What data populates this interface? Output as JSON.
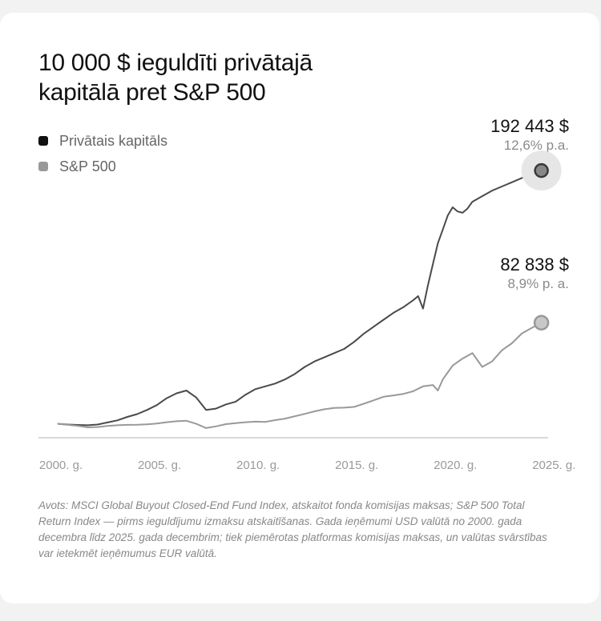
{
  "title": "10 000 $ ieguldīti privātajā kapitālā pret S&P 500",
  "colors": {
    "private": "#4a4a4a",
    "sp500": "#999999",
    "axis": "#cccccc",
    "tick_text": "#9a9a9a"
  },
  "callouts": {
    "private": {
      "value": "192 443 $",
      "rate": "12,6% p.a."
    },
    "sp500": {
      "value": "82 838 $",
      "rate": "8,9% p. a."
    }
  },
  "source_note": "Avots: MSCI Global Buyout Closed-End Fund Index, atskaitot fonda komisijas maksas; S&P 500 Total Return Index — pirms ieguldījumu izmaksu atskaitīšanas. Gada ieņēmumi USD valūtā no 2000. gada decembra līdz 2025. gada decembrim; tiek piemērotas platformas komisijas maksas, un valūtas svārstības var ietekmēt ieņēmumus EUR valūtā.",
  "chart_data": {
    "type": "line",
    "xlim": [
      2000,
      2025.8
    ],
    "ylim": [
      0,
      200000
    ],
    "x_ticks": [
      2000,
      2005,
      2010,
      2015,
      2020,
      2025
    ],
    "x_tick_labels": [
      "2000. g.",
      "2005. g.",
      "2010. g.",
      "2015. g.",
      "2020. g.",
      "2025. g."
    ],
    "legend_position": "top-left",
    "grid": false,
    "series": [
      {
        "name": "Privātais kapitāls",
        "key": "private",
        "x": [
          2001.0,
          2001.5,
          2002.0,
          2002.5,
          2003.0,
          2003.5,
          2004.0,
          2004.5,
          2005.0,
          2005.5,
          2006.0,
          2006.5,
          2007.0,
          2007.5,
          2008.0,
          2008.5,
          2009.0,
          2009.5,
          2010.0,
          2010.5,
          2011.0,
          2011.5,
          2012.0,
          2012.5,
          2013.0,
          2013.5,
          2014.0,
          2014.5,
          2015.0,
          2015.5,
          2016.0,
          2016.5,
          2017.0,
          2017.5,
          2018.0,
          2018.5,
          2019.0,
          2019.25,
          2019.5,
          2019.75,
          2020.0,
          2020.25,
          2020.5,
          2020.75,
          2021.0,
          2021.25,
          2021.5,
          2021.75,
          2022.0,
          2022.5,
          2023.0,
          2023.5,
          2024.0,
          2024.5,
          2025.0,
          2025.5
        ],
        "y": [
          10000,
          9500,
          9200,
          9000,
          9500,
          11000,
          12500,
          15000,
          17000,
          20000,
          23500,
          28500,
          32000,
          34000,
          29000,
          20000,
          21000,
          24000,
          26000,
          31000,
          35000,
          37000,
          39000,
          42000,
          46000,
          51000,
          55000,
          58000,
          61000,
          64000,
          69000,
          75000,
          80000,
          85000,
          90000,
          94000,
          99000,
          102000,
          93000,
          110000,
          125000,
          140000,
          150000,
          160000,
          166000,
          163000,
          162000,
          165000,
          170000,
          174000,
          178000,
          181000,
          184000,
          187000,
          190000,
          192443
        ]
      },
      {
        "name": "S&P 500",
        "key": "sp500",
        "x": [
          2001.0,
          2001.5,
          2002.0,
          2002.5,
          2003.0,
          2003.5,
          2004.0,
          2004.5,
          2005.0,
          2005.5,
          2006.0,
          2006.5,
          2007.0,
          2007.5,
          2008.0,
          2008.5,
          2009.0,
          2009.5,
          2010.0,
          2010.5,
          2011.0,
          2011.5,
          2012.0,
          2012.5,
          2013.0,
          2013.5,
          2014.0,
          2014.5,
          2015.0,
          2015.5,
          2016.0,
          2016.5,
          2017.0,
          2017.5,
          2018.0,
          2018.5,
          2019.0,
          2019.5,
          2020.0,
          2020.25,
          2020.5,
          2020.75,
          2021.0,
          2021.5,
          2022.0,
          2022.5,
          2023.0,
          2023.5,
          2024.0,
          2024.5,
          2025.0,
          2025.5
        ],
        "y": [
          10000,
          9300,
          8600,
          7500,
          7700,
          8500,
          9000,
          9300,
          9400,
          9700,
          10200,
          11200,
          11900,
          12200,
          10000,
          7000,
          8200,
          9800,
          10500,
          11200,
          11600,
          11400,
          12700,
          13800,
          15500,
          17200,
          19000,
          20500,
          21500,
          21700,
          22200,
          24500,
          27000,
          29500,
          30500,
          31500,
          33500,
          37000,
          38000,
          34000,
          42000,
          47000,
          52000,
          57000,
          61000,
          51000,
          55000,
          63000,
          68000,
          75000,
          79000,
          82838
        ]
      }
    ]
  }
}
